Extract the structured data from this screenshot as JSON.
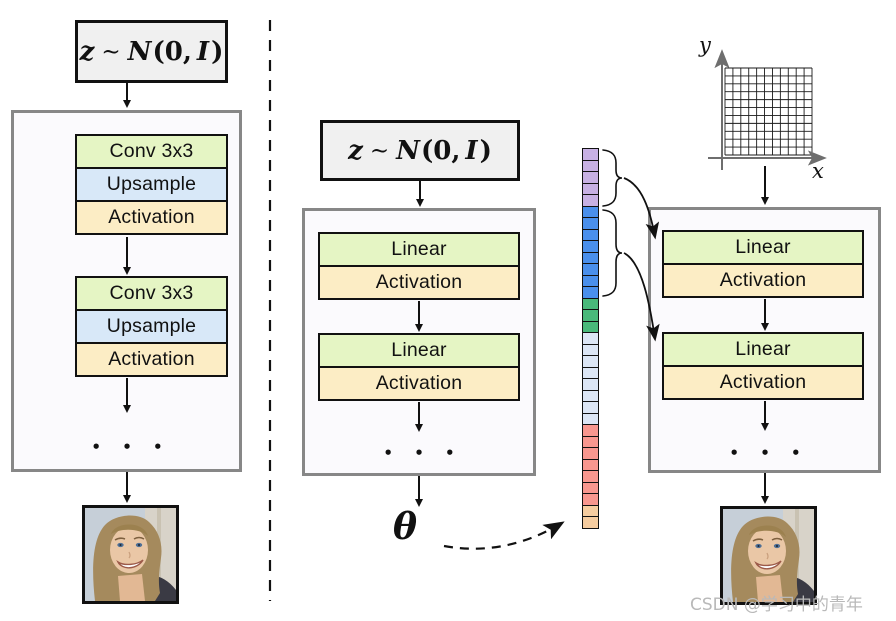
{
  "figure": {
    "watermark": "CSDN @学习中的青年"
  },
  "conv_generator": {
    "latent": {
      "z": "z",
      "tilde": "∼",
      "dist": "N",
      "open": "(0,",
      "eye": "I",
      "close": ")"
    },
    "stack1": [
      "Conv 3x3",
      "Upsample",
      "Activation"
    ],
    "stack2": [
      "Conv 3x3",
      "Upsample",
      "Activation"
    ],
    "ellipsis": "• • •"
  },
  "hypernetwork": {
    "latent": {
      "z": "z",
      "tilde": "∼",
      "dist": "N",
      "open": "(0,",
      "eye": "I",
      "close": ")"
    },
    "stack1": [
      "Linear",
      "Activation"
    ],
    "stack2": [
      "Linear",
      "Activation"
    ],
    "ellipsis": "• • •",
    "output_symbol": "θ"
  },
  "inr": {
    "axis_y": "y",
    "axis_x": "x",
    "stack1": [
      "Linear",
      "Activation"
    ],
    "stack2": [
      "Linear",
      "Activation"
    ],
    "ellipsis": "• • •"
  },
  "param_vector": {
    "segments": [
      {
        "name": "purple",
        "color": "#c8b1e4",
        "count": 5
      },
      {
        "name": "blue",
        "color": "#4a90ed",
        "count": 8
      },
      {
        "name": "green",
        "color": "#49b97a",
        "count": 3
      },
      {
        "name": "pale-blue",
        "color": "#dce6f5",
        "count": 8
      },
      {
        "name": "salmon",
        "color": "#f8978f",
        "count": 7
      },
      {
        "name": "peach",
        "color": "#f6cda0",
        "count": 2
      }
    ]
  },
  "palette": {
    "block_green": "#e5f5c4",
    "block_blue": "#d8e8f8",
    "block_peach": "#fcedc5",
    "latent_box_bg": "#f0f0f0",
    "container_border": "#878787",
    "watermark_gray": "#b9b9b9"
  }
}
